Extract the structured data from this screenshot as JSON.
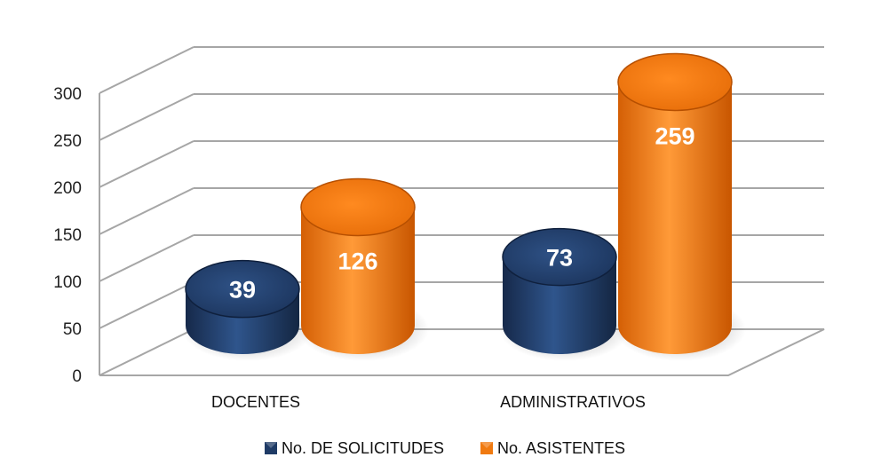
{
  "chart_data": {
    "type": "bar",
    "style": "3d-cylinder",
    "title": "",
    "xlabel": "",
    "ylabel": "",
    "categories": [
      "DOCENTES",
      "ADMINISTRATIVOS"
    ],
    "series": [
      {
        "name": "No. DE SOLICITUDES",
        "values": [
          39,
          73
        ],
        "color": "#1f3b66"
      },
      {
        "name": "No. ASISTENTES",
        "values": [
          126,
          259
        ],
        "color": "#f07a10"
      }
    ],
    "ylim": [
      0,
      300
    ],
    "yticks": [
      0,
      50,
      100,
      150,
      200,
      250,
      300
    ],
    "grid": true,
    "legend": "bottom",
    "data_labels": true
  }
}
